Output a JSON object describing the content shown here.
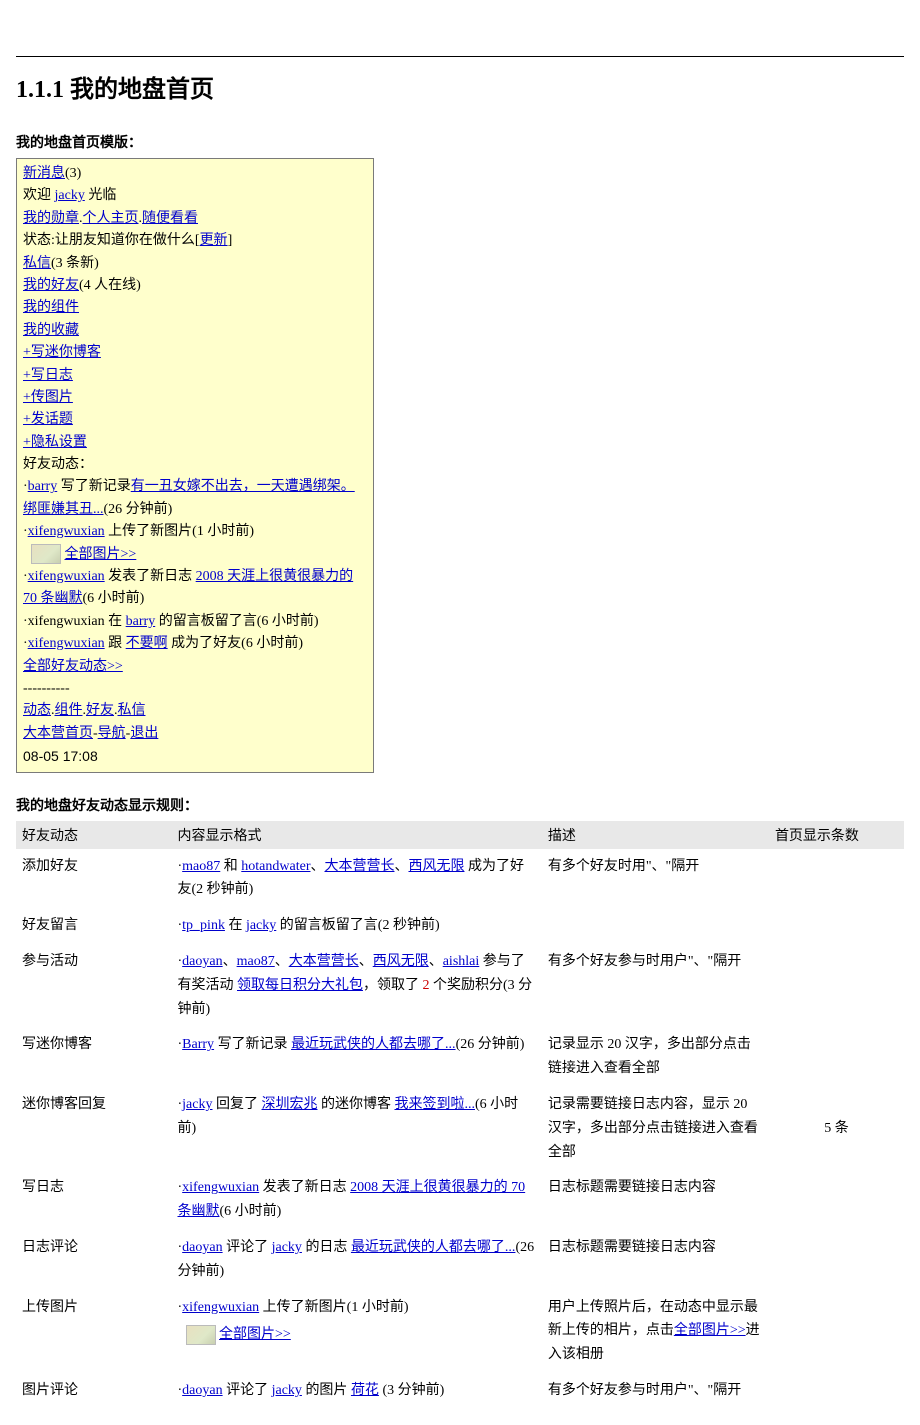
{
  "section_number": "1.1.1",
  "section_title": "我的地盘首页",
  "template_label": "我的地盘首页模版：",
  "template": {
    "new_msg_label": "新消息",
    "new_msg_count": "(3)",
    "welcome_prefix": "欢迎 ",
    "username": "jacky",
    "welcome_suffix": " 光临",
    "my_medals": "我的勋章",
    "profile": "个人主页",
    "browse": "随便看看",
    "status_prefix": "状态:让朋友知道你在做什么[",
    "update": "更新",
    "status_suffix": "]",
    "pm_label": "私信",
    "pm_count": "(3 条新)",
    "friends_label": "我的好友",
    "friends_count": "(4 人在线)",
    "widgets": "我的组件",
    "favorites": "我的收藏",
    "miniblog": "+写迷你博客",
    "diary": "+写日志",
    "upload": "+传图片",
    "topic": "+发话题",
    "privacy": "+隐私设置",
    "feed_title": "好友动态：",
    "feed1_user": "barry",
    "feed1_mid": " 写了新记录",
    "feed1_link": "有一丑女嫁不出去，一天遭遇绑架。绑匪嫌其丑...",
    "feed1_time": "(26 分钟前)",
    "feed2_user": "xifengwuxian",
    "feed2_text": "  上传了新图片(1 小时前)",
    "feed2_all": "全部图片>>",
    "feed3_user": "xifengwuxian",
    "feed3_mid": "  发表了新日志  ",
    "feed3_link": "2008 天涯上很黄很暴力的 70 条幽默",
    "feed3_time": "(6 小时前)",
    "feed4_pre": "·xifengwuxian  在  ",
    "feed4_user": "barry",
    "feed4_text": "  的留言板留了言(6 小时前)",
    "feed5_user": "xifengwuxian",
    "feed5_mid": "  跟  ",
    "feed5_user2": "不要啊",
    "feed5_text": "  成为了好友(6 小时前)",
    "all_feed": "全部好友动态>>",
    "dashes": "----------",
    "nav1": "动态",
    "nav2": "组件",
    "nav3": "好友",
    "nav4": "私信",
    "nav5": "大本营首页",
    "nav6": "导航",
    "nav7": "退出",
    "datetime": "08-05 17:08"
  },
  "rules_label": "我的地盘好友动态显示规则：",
  "rules": {
    "headers": [
      "好友动态",
      "内容显示格式",
      "描述",
      "首页显示条数"
    ],
    "count_value": "5 条",
    "rows": [
      {
        "type": "添加好友",
        "format_parts": [
          "·",
          {
            "link": "mao87"
          },
          "  和  ",
          {
            "link": "hotandwater"
          },
          "、",
          {
            "link": "大本营营长"
          },
          "、",
          {
            "link": "西风无限"
          },
          "  成为了好友(2 秒钟前)"
        ],
        "desc": "有多个好友时用\"、\"隔开"
      },
      {
        "type": "好友留言",
        "format_parts": [
          "·",
          {
            "link": "tp_pink"
          },
          "  在  ",
          {
            "link": "jacky"
          },
          "  的留言板留了言(2 秒钟前)"
        ],
        "desc": ""
      },
      {
        "type": "参与活动",
        "format_parts": [
          "·",
          {
            "link": "daoyan"
          },
          "、",
          {
            "link": "mao87"
          },
          "、",
          {
            "link": "大本营营长"
          },
          "、",
          {
            "link": "西风无限"
          },
          "、",
          {
            "link": "aishlai"
          },
          "  参与了有奖活动 ",
          {
            "link": "领取每日积分大礼包"
          },
          "，领取了 ",
          {
            "red": "2"
          },
          " 个奖励积分(3 分钟前)"
        ],
        "desc": "有多个好友参与时用户\"、\"隔开"
      },
      {
        "type": "写迷你博客",
        "format_parts": [
          "·",
          {
            "link": "Barry"
          },
          " 写了新记录  ",
          {
            "link": "最近玩武侠的人都去哪了..."
          },
          "(26 分钟前)"
        ],
        "desc": "记录显示 20 汉字，多出部分点击链接进入查看全部"
      },
      {
        "type": "迷你博客回复",
        "format_parts": [
          "·",
          {
            "link": "jacky"
          },
          "  回复了  ",
          {
            "link": "深圳宏兆"
          },
          "  的迷你博客  ",
          {
            "link": "我来签到啦..."
          },
          "(6 小时前)"
        ],
        "desc": "记录需要链接日志内容，显示 20 汉字，多出部分点击链接进入查看全部"
      },
      {
        "type": "写日志",
        "format_parts": [
          "·",
          {
            "link": "xifengwuxian"
          },
          "  发表了新日志  ",
          {
            "link": "2008 天涯上很黄很暴力的 70 条幽默"
          },
          "(6 小时前)"
        ],
        "desc": "日志标题需要链接日志内容"
      },
      {
        "type": "日志评论",
        "format_parts": [
          "·",
          {
            "link": "daoyan"
          },
          " 评论了 ",
          {
            "link": "jacky"
          },
          "  的日志  ",
          {
            "link": "最近玩武侠的人都去哪了..."
          },
          "(26 分钟前)"
        ],
        "desc": "日志标题需要链接日志内容"
      },
      {
        "type": "上传图片",
        "format_parts": [
          "·",
          {
            "link": "xifengwuxian"
          },
          "  上传了新图片(1 小时前)"
        ],
        "has_thumb": true,
        "thumb_link": "全部图片>>",
        "desc_parts": [
          "用户上传照片后，在动态中显示最新上传的相片，点击",
          {
            "link": "全部图片>>"
          },
          "进入该相册"
        ]
      },
      {
        "type": "图片评论",
        "format_parts": [
          "·",
          {
            "link": "daoyan"
          },
          " 评论了 ",
          {
            "link": "jacky"
          },
          "  的图片  ",
          {
            "link": "荷花"
          },
          "  (3 分钟前)"
        ],
        "desc": "有多个好友参与时用户\"、\"隔开"
      }
    ]
  }
}
